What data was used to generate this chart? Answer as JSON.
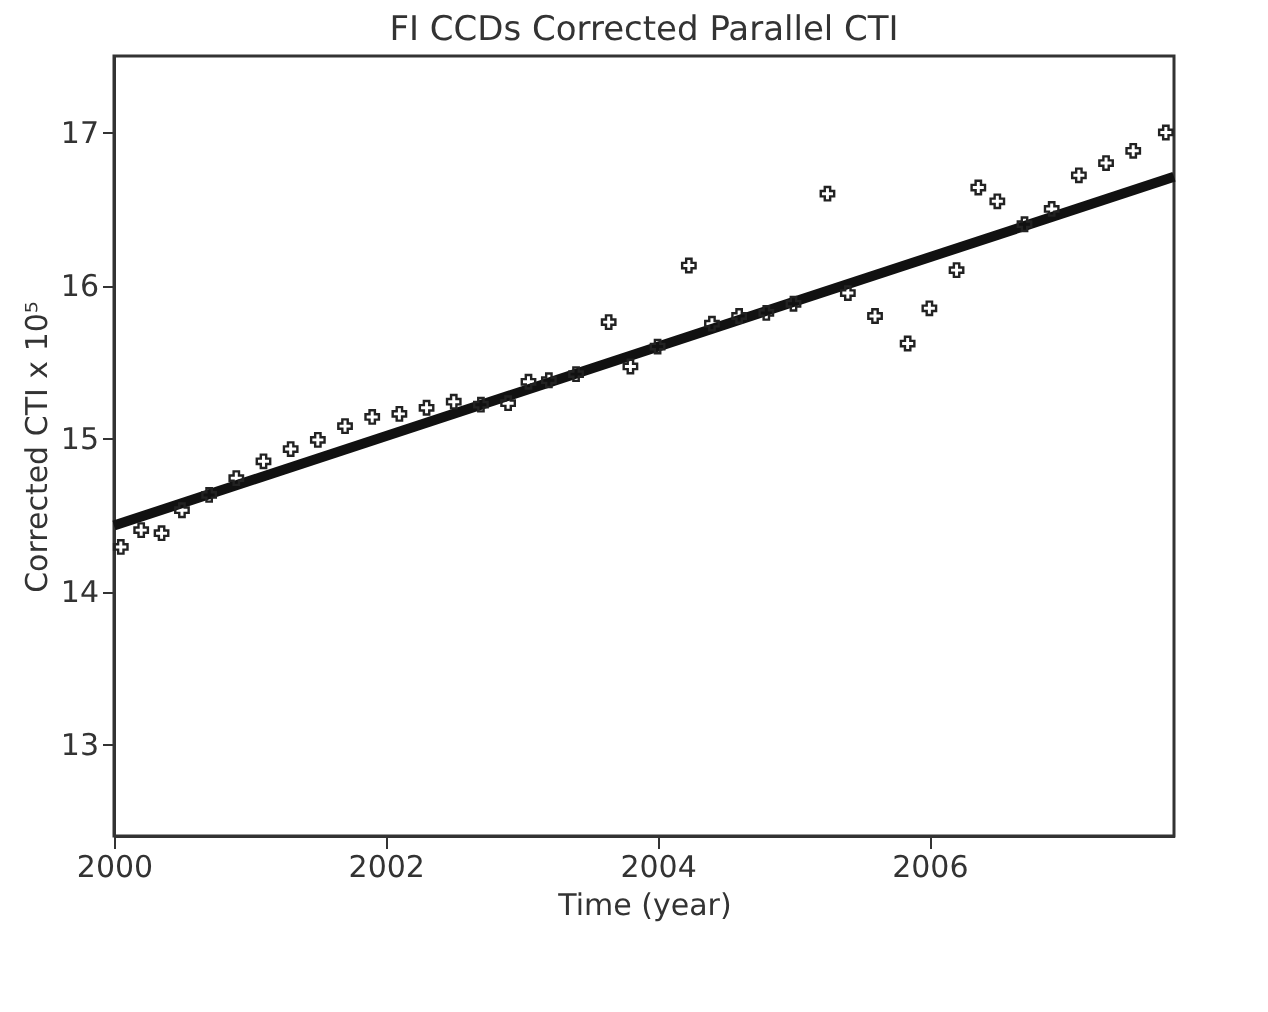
{
  "chart_data": {
    "type": "scatter",
    "title": "FI CCDs Corrected Parallel CTI",
    "xlabel": "Time (year)",
    "ylabel": "Corrected CTI x 10⁵",
    "xlim": [
      2000,
      2007.8
    ],
    "ylim": [
      12.4,
      17.5
    ],
    "xticks": [
      2000,
      2002,
      2004,
      2006
    ],
    "yticks": [
      13,
      14,
      15,
      16,
      17
    ],
    "marker": "cross",
    "grid": false,
    "series": [
      {
        "type": "scatter",
        "color": "#222222",
        "x": [
          2000.05,
          2000.2,
          2000.35,
          2000.5,
          2000.7,
          2000.9,
          2001.1,
          2001.3,
          2001.5,
          2001.7,
          2001.9,
          2002.1,
          2002.3,
          2002.5,
          2002.7,
          2002.9,
          2003.05,
          2003.2,
          2003.4,
          2003.64,
          2003.8,
          2004.0,
          2004.23,
          2004.4,
          2004.6,
          2004.8,
          2005.0,
          2005.25,
          2005.4,
          2005.6,
          2005.84,
          2006.0,
          2006.2,
          2006.36,
          2006.5,
          2006.7,
          2006.9,
          2007.1,
          2007.3,
          2007.5,
          2007.74
        ],
        "values": [
          14.29,
          14.4,
          14.38,
          14.53,
          14.63,
          14.74,
          14.85,
          14.93,
          14.99,
          15.08,
          15.14,
          15.16,
          15.2,
          15.24,
          15.22,
          15.23,
          15.37,
          15.38,
          15.42,
          15.76,
          15.47,
          15.6,
          16.13,
          15.75,
          15.8,
          15.82,
          15.88,
          16.6,
          15.95,
          15.8,
          15.62,
          15.85,
          16.1,
          16.64,
          16.55,
          16.4,
          16.5,
          16.72,
          16.8,
          16.88,
          17.0
        ]
      },
      {
        "type": "line",
        "marker": "none",
        "color": "#111111",
        "x": [
          2000,
          2007.8
        ],
        "values": [
          14.43,
          16.71
        ]
      }
    ]
  }
}
